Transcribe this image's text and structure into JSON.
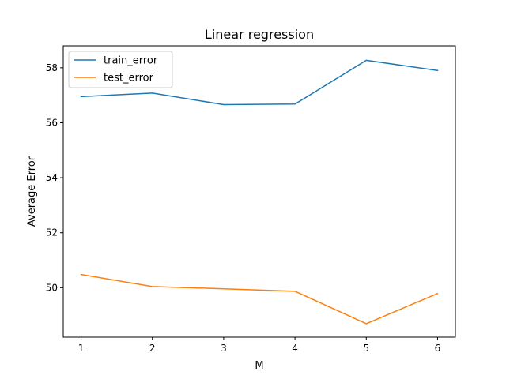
{
  "chart_data": {
    "type": "line",
    "title": "Linear regression",
    "xlabel": "M",
    "ylabel": "Average Error",
    "x": [
      1,
      2,
      3,
      4,
      5,
      6
    ],
    "series": [
      {
        "name": "train_error",
        "color": "#1f77b4",
        "values": [
          56.95,
          57.08,
          56.66,
          56.68,
          58.27,
          57.9
        ]
      },
      {
        "name": "test_error",
        "color": "#ff7f0e",
        "values": [
          50.48,
          50.04,
          49.96,
          49.87,
          48.69,
          49.79
        ]
      }
    ],
    "xlim": [
      0.75,
      6.25
    ],
    "ylim": [
      48.2,
      58.8
    ],
    "xticks": [
      1,
      2,
      3,
      4,
      5,
      6
    ],
    "yticks": [
      50,
      52,
      54,
      56,
      58
    ],
    "grid": false,
    "legend_position": "top-left"
  }
}
